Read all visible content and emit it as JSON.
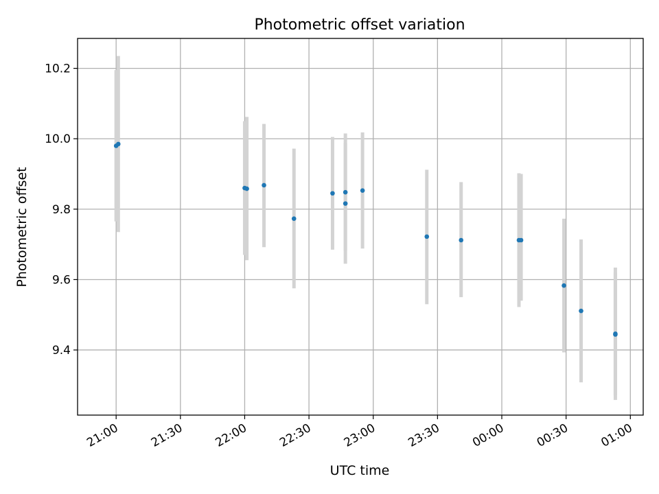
{
  "chart_data": {
    "type": "scatter",
    "title": "Photometric offset variation",
    "xlabel": "UTC time",
    "ylabel": "Photometric offset",
    "x_axis": "time",
    "xlim": [
      "20:42",
      "01:06"
    ],
    "ylim": [
      9.215,
      10.285
    ],
    "grid": true,
    "x_ticks": [
      "21:00",
      "21:30",
      "22:00",
      "22:30",
      "23:00",
      "23:30",
      "00:00",
      "00:30",
      "01:00"
    ],
    "y_ticks": [
      "9.4",
      "9.6",
      "9.8",
      "10.0",
      "10.2"
    ],
    "colors": {
      "point": "#1f77b4",
      "errorbar": "#d3d3d3",
      "grid": "#b0b0b0"
    },
    "points": [
      {
        "x": "21:00",
        "y": 9.98,
        "yerr": [
          9.765,
          10.195
        ]
      },
      {
        "x": "21:01",
        "y": 9.985,
        "yerr": [
          9.735,
          10.235
        ]
      },
      {
        "x": "22:00",
        "y": 9.86,
        "yerr": [
          9.67,
          10.05
        ]
      },
      {
        "x": "22:01",
        "y": 9.858,
        "yerr": [
          9.655,
          10.062
        ]
      },
      {
        "x": "22:09",
        "y": 9.868,
        "yerr": [
          9.692,
          10.042
        ]
      },
      {
        "x": "22:23",
        "y": 9.773,
        "yerr": [
          9.575,
          9.972
        ]
      },
      {
        "x": "22:41",
        "y": 9.845,
        "yerr": [
          9.685,
          10.005
        ]
      },
      {
        "x": "22:47",
        "y": 9.848,
        "yerr": [
          9.682,
          10.015
        ]
      },
      {
        "x": "22:47",
        "y": 9.816,
        "yerr": [
          9.645,
          9.988
        ]
      },
      {
        "x": "22:55",
        "y": 9.853,
        "yerr": [
          9.688,
          10.018
        ]
      },
      {
        "x": "23:25",
        "y": 9.722,
        "yerr": [
          9.53,
          9.912
        ]
      },
      {
        "x": "23:41",
        "y": 9.712,
        "yerr": [
          9.55,
          9.877
        ]
      },
      {
        "x": "00:08",
        "y": 9.712,
        "yerr": [
          9.522,
          9.902
        ]
      },
      {
        "x": "00:09",
        "y": 9.712,
        "yerr": [
          9.54,
          9.9
        ]
      },
      {
        "x": "00:29",
        "y": 9.583,
        "yerr": [
          9.393,
          9.773
        ]
      },
      {
        "x": "00:37",
        "y": 9.511,
        "yerr": [
          9.308,
          9.714
        ]
      },
      {
        "x": "00:53",
        "y": 9.444,
        "yerr": [
          9.272,
          9.62
        ]
      },
      {
        "x": "00:53",
        "y": 9.446,
        "yerr": [
          9.258,
          9.634
        ]
      }
    ]
  }
}
